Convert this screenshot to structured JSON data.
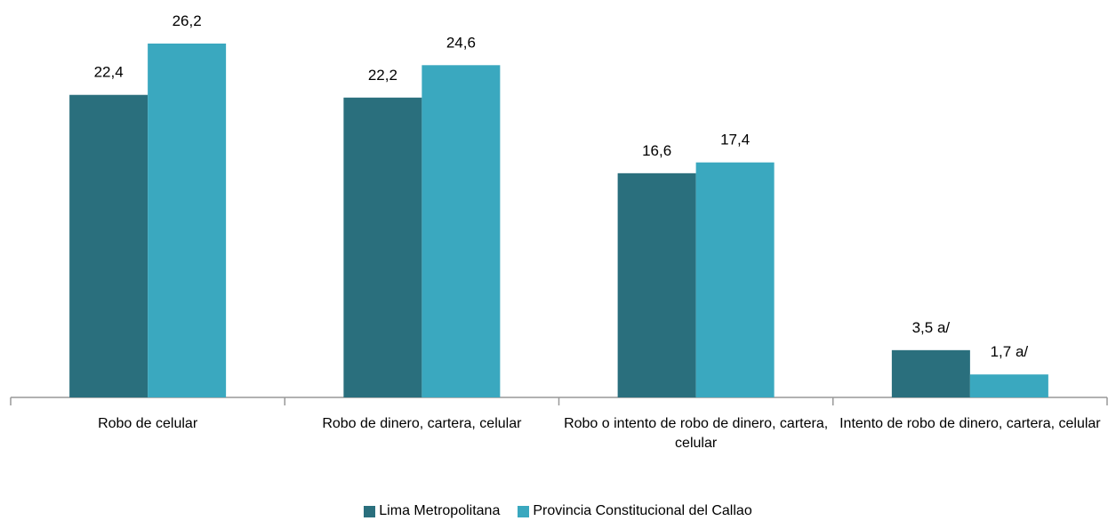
{
  "chart_data": {
    "type": "bar",
    "categories": [
      "Robo de celular",
      "Robo de dinero, cartera, celular",
      "Robo o intento de robo de dinero, cartera, celular",
      "Intento de robo de dinero, cartera, celular"
    ],
    "series": [
      {
        "name": "Lima Metropolitana",
        "color": "#2a6f7d",
        "values": [
          22.4,
          22.2,
          16.6,
          3.5
        ],
        "value_labels": [
          "22,4",
          "22,2",
          "16,6",
          "3,5 a/"
        ]
      },
      {
        "name": "Provincia Constitucional del Callao",
        "color": "#3aa8bf",
        "values": [
          26.2,
          24.6,
          17.4,
          1.7
        ],
        "value_labels": [
          "26,2",
          "24,6",
          "17,4",
          "1,7 a/"
        ]
      }
    ],
    "legend": "bottom"
  }
}
